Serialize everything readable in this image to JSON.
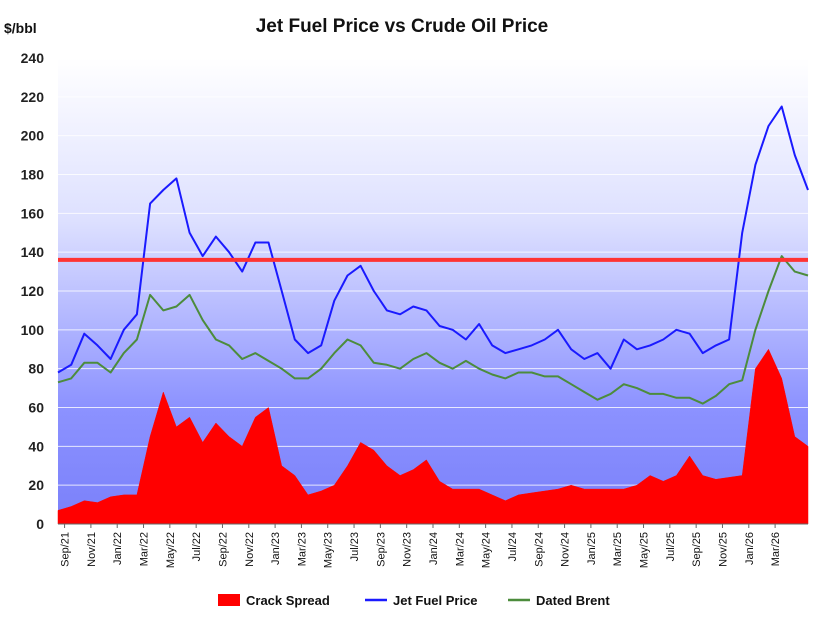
{
  "chart_data": {
    "type": "line",
    "title": "Jet Fuel Price vs Crude Oil Price",
    "ylabel": "$/bbl",
    "xlabel": "",
    "ylim": [
      0,
      240
    ],
    "yticks": [
      0,
      20,
      40,
      60,
      80,
      100,
      120,
      140,
      160,
      180,
      200,
      220,
      240
    ],
    "grid": true,
    "legend_position": "bottom",
    "x_tick_labels": [
      "Sep/21",
      "Nov/21",
      "Jan/22",
      "Mar/22",
      "May/22",
      "Jul/22",
      "Sep/22",
      "Nov/22",
      "Jan/23",
      "Mar/23",
      "May/23",
      "Jul/23",
      "Sep/23",
      "Nov/23",
      "Jan/24",
      "Mar/24",
      "May/24",
      "Jul/24",
      "Sep/24",
      "Nov/24",
      "Jan/25",
      "Mar/25",
      "May/25",
      "Jul/25",
      "Sep/25",
      "Nov/25",
      "Jan/26",
      "Mar/26"
    ],
    "x_month_index_range": [
      0,
      57
    ],
    "reference_line": {
      "value": 136,
      "color": "#ff3333"
    },
    "series": [
      {
        "name": "Crack Spread",
        "type": "area",
        "color": "#ff0000",
        "points": [
          [
            0,
            7
          ],
          [
            1,
            9
          ],
          [
            2,
            12
          ],
          [
            3,
            11
          ],
          [
            4,
            14
          ],
          [
            5,
            15
          ],
          [
            6,
            15
          ],
          [
            7,
            45
          ],
          [
            8,
            68
          ],
          [
            9,
            50
          ],
          [
            10,
            55
          ],
          [
            11,
            42
          ],
          [
            12,
            52
          ],
          [
            13,
            45
          ],
          [
            14,
            40
          ],
          [
            15,
            55
          ],
          [
            16,
            60
          ],
          [
            17,
            30
          ],
          [
            18,
            25
          ],
          [
            19,
            15
          ],
          [
            20,
            17
          ],
          [
            21,
            20
          ],
          [
            22,
            30
          ],
          [
            23,
            42
          ],
          [
            24,
            38
          ],
          [
            25,
            30
          ],
          [
            26,
            25
          ],
          [
            27,
            28
          ],
          [
            28,
            33
          ],
          [
            29,
            22
          ],
          [
            30,
            18
          ],
          [
            31,
            18
          ],
          [
            32,
            18
          ],
          [
            33,
            15
          ],
          [
            34,
            12
          ],
          [
            35,
            15
          ],
          [
            36,
            16
          ],
          [
            37,
            17
          ],
          [
            38,
            18
          ],
          [
            39,
            20
          ],
          [
            40,
            18
          ],
          [
            41,
            18
          ],
          [
            42,
            18
          ],
          [
            43,
            18
          ],
          [
            44,
            20
          ],
          [
            45,
            25
          ],
          [
            46,
            22
          ],
          [
            47,
            25
          ],
          [
            48,
            35
          ],
          [
            49,
            25
          ],
          [
            50,
            23
          ],
          [
            51,
            24
          ],
          [
            52,
            25
          ],
          [
            53,
            80
          ],
          [
            54,
            90
          ],
          [
            55,
            75
          ],
          [
            56,
            45
          ],
          [
            57,
            40
          ]
        ]
      },
      {
        "name": "Jet Fuel Price",
        "type": "line",
        "color": "#1a1aff",
        "points": [
          [
            0,
            78
          ],
          [
            1,
            82
          ],
          [
            2,
            98
          ],
          [
            3,
            92
          ],
          [
            4,
            85
          ],
          [
            5,
            100
          ],
          [
            6,
            108
          ],
          [
            7,
            165
          ],
          [
            8,
            172
          ],
          [
            9,
            178
          ],
          [
            10,
            150
          ],
          [
            11,
            138
          ],
          [
            12,
            148
          ],
          [
            13,
            140
          ],
          [
            14,
            130
          ],
          [
            15,
            145
          ],
          [
            16,
            145
          ],
          [
            17,
            120
          ],
          [
            18,
            95
          ],
          [
            19,
            88
          ],
          [
            20,
            92
          ],
          [
            21,
            115
          ],
          [
            22,
            128
          ],
          [
            23,
            133
          ],
          [
            24,
            120
          ],
          [
            25,
            110
          ],
          [
            26,
            108
          ],
          [
            27,
            112
          ],
          [
            28,
            110
          ],
          [
            29,
            102
          ],
          [
            30,
            100
          ],
          [
            31,
            95
          ],
          [
            32,
            103
          ],
          [
            33,
            92
          ],
          [
            34,
            88
          ],
          [
            35,
            90
          ],
          [
            36,
            92
          ],
          [
            37,
            95
          ],
          [
            38,
            100
          ],
          [
            39,
            90
          ],
          [
            40,
            85
          ],
          [
            41,
            88
          ],
          [
            42,
            80
          ],
          [
            43,
            95
          ],
          [
            44,
            90
          ],
          [
            45,
            92
          ],
          [
            46,
            95
          ],
          [
            47,
            100
          ],
          [
            48,
            98
          ],
          [
            49,
            88
          ],
          [
            50,
            92
          ],
          [
            51,
            95
          ],
          [
            52,
            150
          ],
          [
            53,
            185
          ],
          [
            54,
            205
          ],
          [
            55,
            215
          ],
          [
            56,
            190
          ],
          [
            57,
            172
          ]
        ]
      },
      {
        "name": "Dated Brent",
        "type": "line",
        "color": "#4c8c3c",
        "points": [
          [
            0,
            73
          ],
          [
            1,
            75
          ],
          [
            2,
            83
          ],
          [
            3,
            83
          ],
          [
            4,
            78
          ],
          [
            5,
            88
          ],
          [
            6,
            95
          ],
          [
            7,
            118
          ],
          [
            8,
            110
          ],
          [
            9,
            112
          ],
          [
            10,
            118
          ],
          [
            11,
            105
          ],
          [
            12,
            95
          ],
          [
            13,
            92
          ],
          [
            14,
            85
          ],
          [
            15,
            88
          ],
          [
            16,
            84
          ],
          [
            17,
            80
          ],
          [
            18,
            75
          ],
          [
            19,
            75
          ],
          [
            20,
            80
          ],
          [
            21,
            88
          ],
          [
            22,
            95
          ],
          [
            23,
            92
          ],
          [
            24,
            83
          ],
          [
            25,
            82
          ],
          [
            26,
            80
          ],
          [
            27,
            85
          ],
          [
            28,
            88
          ],
          [
            29,
            83
          ],
          [
            30,
            80
          ],
          [
            31,
            84
          ],
          [
            32,
            80
          ],
          [
            33,
            77
          ],
          [
            34,
            75
          ],
          [
            35,
            78
          ],
          [
            36,
            78
          ],
          [
            37,
            76
          ],
          [
            38,
            76
          ],
          [
            39,
            72
          ],
          [
            40,
            68
          ],
          [
            41,
            64
          ],
          [
            42,
            67
          ],
          [
            43,
            72
          ],
          [
            44,
            70
          ],
          [
            45,
            67
          ],
          [
            46,
            67
          ],
          [
            47,
            65
          ],
          [
            48,
            65
          ],
          [
            49,
            62
          ],
          [
            50,
            66
          ],
          [
            51,
            72
          ],
          [
            52,
            74
          ],
          [
            53,
            100
          ],
          [
            54,
            120
          ],
          [
            55,
            138
          ],
          [
            56,
            130
          ],
          [
            57,
            128
          ]
        ]
      }
    ]
  },
  "legend": [
    {
      "label": "Crack Spread",
      "color": "#ff0000",
      "shape": "rect"
    },
    {
      "label": "Jet Fuel Price",
      "color": "#1a1aff",
      "shape": "line"
    },
    {
      "label": "Dated Brent",
      "color": "#4c8c3c",
      "shape": "line"
    }
  ]
}
